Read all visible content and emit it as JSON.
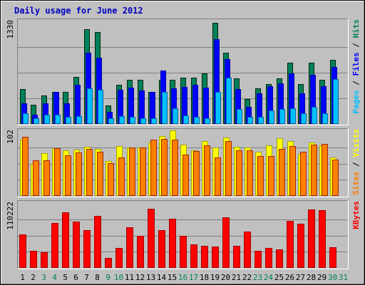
{
  "title": "Daily usage for June 2012",
  "colors": {
    "hits": "#00805c",
    "files": "#0000ff",
    "pages": "#00c0ff",
    "visits": "#ffff00",
    "sites": "#ff8000",
    "kbytes": "#ff0000",
    "title": "#0000c0",
    "weekday_label": "#000000",
    "weekend_label": "#00805c",
    "panel_bg": "#c0c0c0"
  },
  "chart_data": [
    {
      "type": "bar",
      "panel": "hits-files-pages",
      "ymax_label": "1330",
      "ylim": [
        0,
        1330
      ],
      "right_labels": [
        {
          "text": "Pages",
          "color": "#00c0ff"
        },
        {
          "text": " / ",
          "color": "#000000"
        },
        {
          "text": "Files",
          "color": "#0000ff"
        },
        {
          "text": " / ",
          "color": "#000000"
        },
        {
          "text": "Hits",
          "color": "#00805c"
        }
      ],
      "categories": [
        "1",
        "2",
        "3",
        "4",
        "5",
        "6",
        "7",
        "8",
        "9",
        "10",
        "11",
        "12",
        "13",
        "14",
        "15",
        "16",
        "17",
        "18",
        "19",
        "20",
        "21",
        "22",
        "23",
        "24",
        "25",
        "26",
        "27",
        "28",
        "29",
        "30",
        "31"
      ],
      "weekend": [
        false,
        false,
        true,
        true,
        false,
        false,
        false,
        false,
        true,
        true,
        false,
        false,
        false,
        false,
        false,
        true,
        true,
        false,
        false,
        false,
        false,
        false,
        true,
        true,
        false,
        false,
        false,
        false,
        false,
        true,
        true
      ],
      "series": [
        {
          "name": "Hits",
          "values": [
            450,
            250,
            370,
            420,
            420,
            610,
            1230,
            1190,
            240,
            510,
            570,
            570,
            420,
            570,
            570,
            600,
            600,
            660,
            1310,
            920,
            590,
            320,
            460,
            520,
            590,
            790,
            520,
            790,
            570,
            830,
            0
          ]
        },
        {
          "name": "Files",
          "values": [
            270,
            120,
            270,
            420,
            270,
            510,
            920,
            860,
            160,
            440,
            470,
            430,
            420,
            690,
            460,
            480,
            510,
            470,
            1100,
            840,
            450,
            220,
            400,
            490,
            530,
            660,
            400,
            640,
            490,
            740,
            0
          ]
        },
        {
          "name": "Pages",
          "values": [
            140,
            70,
            120,
            120,
            90,
            100,
            460,
            440,
            70,
            100,
            90,
            70,
            70,
            420,
            200,
            110,
            90,
            70,
            420,
            600,
            190,
            90,
            90,
            180,
            190,
            200,
            140,
            220,
            140,
            580,
            0
          ]
        }
      ]
    },
    {
      "type": "bar",
      "panel": "visits-sites",
      "ymax_label": "102",
      "ylim": [
        0,
        102
      ],
      "right_labels": [
        {
          "text": "Sites",
          "color": "#ff8000"
        },
        {
          "text": " / ",
          "color": "#000000"
        },
        {
          "text": "Visits",
          "color": "#ffff00"
        }
      ],
      "categories": [
        "1",
        "2",
        "3",
        "4",
        "5",
        "6",
        "7",
        "8",
        "9",
        "10",
        "11",
        "12",
        "13",
        "14",
        "15",
        "16",
        "17",
        "18",
        "19",
        "20",
        "21",
        "22",
        "23",
        "24",
        "25",
        "26",
        "27",
        "28",
        "29",
        "30",
        "31"
      ],
      "series": [
        {
          "name": "Visits",
          "values": [
            88,
            50,
            67,
            75,
            72,
            73,
            77,
            74,
            55,
            79,
            76,
            76,
            84,
            94,
            103,
            81,
            72,
            86,
            76,
            92,
            77,
            76,
            70,
            80,
            91,
            86,
            66,
            84,
            80,
            61,
            0
          ]
        },
        {
          "name": "Sites",
          "values": [
            93,
            56,
            56,
            75,
            64,
            68,
            74,
            69,
            52,
            61,
            76,
            76,
            88,
            90,
            89,
            65,
            71,
            80,
            61,
            86,
            72,
            72,
            63,
            63,
            74,
            79,
            69,
            81,
            82,
            57,
            0
          ]
        }
      ]
    },
    {
      "type": "bar",
      "panel": "kbytes",
      "ymax_label": "110222",
      "ylim": [
        0,
        110222
      ],
      "right_labels": [
        {
          "text": "KBytes",
          "color": "#ff0000"
        }
      ],
      "categories": [
        "1",
        "2",
        "3",
        "4",
        "5",
        "6",
        "7",
        "8",
        "9",
        "10",
        "11",
        "12",
        "13",
        "14",
        "15",
        "16",
        "17",
        "18",
        "19",
        "20",
        "21",
        "22",
        "23",
        "24",
        "25",
        "26",
        "27",
        "28",
        "29",
        "30",
        "31"
      ],
      "series": [
        {
          "name": "KBytes",
          "values": [
            57000,
            29000,
            27000,
            76000,
            95000,
            79000,
            64000,
            89000,
            17000,
            34000,
            69000,
            55000,
            101000,
            64000,
            83000,
            54000,
            40000,
            38000,
            36000,
            86000,
            37000,
            62000,
            29000,
            34000,
            31000,
            80000,
            75000,
            99000,
            98000,
            35000,
            0
          ]
        }
      ]
    }
  ]
}
